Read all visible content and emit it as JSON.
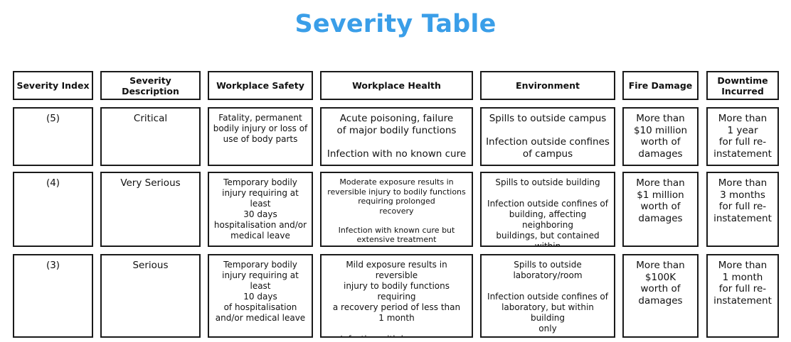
{
  "title": "Severity Table",
  "headers": [
    "Severity Index",
    "Severity Description",
    "Workplace Safety",
    "Workplace Health",
    "Environment",
    "Fire Damage",
    "Downtime Incurred"
  ],
  "rows": [
    {
      "index": "(5)",
      "description": "Critical",
      "safety": "Fatality, permanent\nbodily injury or loss of\nuse of body parts",
      "health": "Acute poisoning, failure\nof major bodily functions\n\nInfection with no known cure",
      "environment": "Spills to outside campus\n\nInfection outside confines\nof campus",
      "fire": "More than\n$10 million\nworth of\ndamages",
      "downtime": "More than\n1 year\nfor full re-\ninstatement"
    },
    {
      "index": "(4)",
      "description": "Very Serious",
      "safety": "Temporary bodily\ninjury requiring at least\n30 days\nhospitalisation and/or\nmedical leave",
      "health": "Moderate exposure results in\nreversible injury to bodily functions\nrequiring prolonged\nrecovery\n\nInfection with known cure but\nextensive treatment",
      "environment": "Spills to outside building\n\nInfection outside confines of\nbuilding, affecting neighboring\nbuildings, but contained within\ncampus",
      "fire": "More than\n$1 million\nworth of\ndamages",
      "downtime": "More than\n3 months\nfor full re-\ninstatement"
    },
    {
      "index": "(3)",
      "description": "Serious",
      "safety": "Temporary bodily\ninjury requiring at least\n10 days\nof hospitalisation\nand/or medical leave",
      "health": "Mild exposure results in reversible\ninjury to bodily functions requiring\na recovery period of less than\n1 month\n\nInfection with known cure,\nbut extensive treatment",
      "environment": "Spills to outside\nlaboratory/room\n\nInfection outside confines of\nlaboratory, but within building\nonly",
      "fire": "More than\n$100K\nworth of\ndamages",
      "downtime": "More than\n1 month\nfor full re-\ninstatement"
    }
  ]
}
